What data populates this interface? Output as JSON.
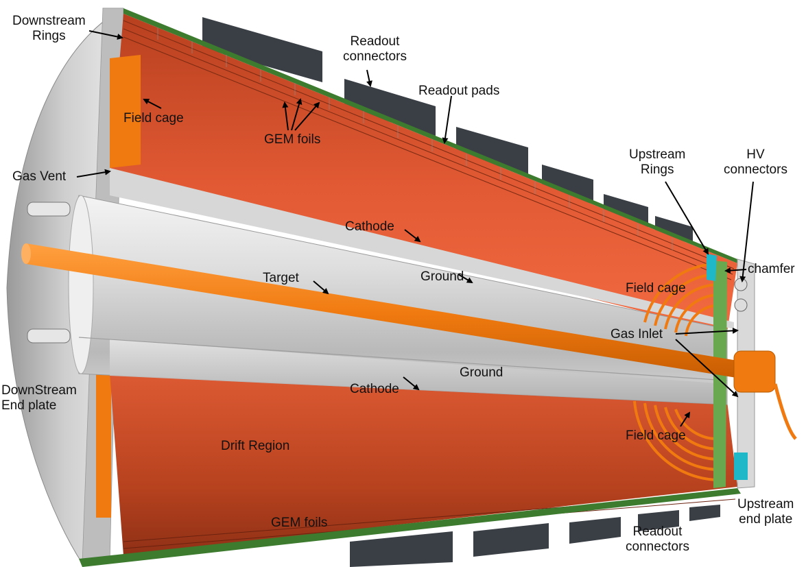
{
  "labels": {
    "downstream_rings": "Downstream\nRings",
    "readout_connectors_top": "Readout\nconnectors",
    "readout_pads": "Readout pads",
    "field_cage_left": "Field cage",
    "gem_foils_top": "GEM foils",
    "gas_vent": "Gas Vent",
    "upstream_rings": "Upstream\nRings",
    "hv_connectors": "HV\nconnectors",
    "cathode_top": "Cathode",
    "chamfer": "chamfer",
    "target": "Target",
    "ground_top": "Ground",
    "field_cage_upper_right": "Field cage",
    "gas_inlet": "Gas Inlet",
    "ground_bottom": "Ground",
    "cathode_bottom": "Cathode",
    "downstream_end_plate": "DownStream\nEnd plate",
    "field_cage_lower_right": "Field cage",
    "drift_region": "Drift Region",
    "gem_foils_bottom": "GEM foils",
    "upstream_end_plate": "Upstream\nend plate",
    "readout_connectors_bottom": "Readout\nconnectors"
  },
  "colors": {
    "copper": "#d9552f",
    "orange_part": "#f07a10",
    "grey_metal": "#c8c8c8",
    "connector": "#3a3f46",
    "green_pcb": "#6aa84f",
    "cyan_ring": "#1fb8c8"
  }
}
